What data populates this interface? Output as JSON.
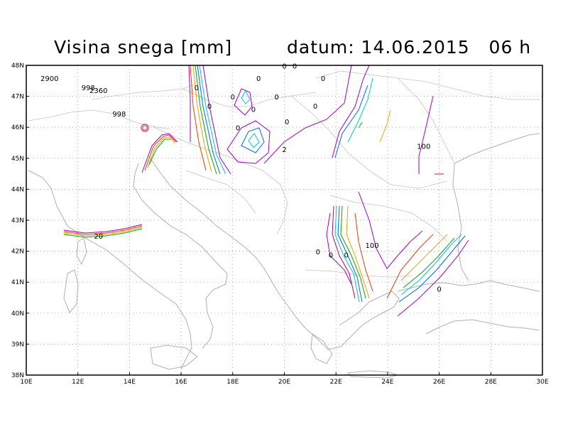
{
  "header": {
    "title": "Visina snega [mm]",
    "datum_label": "datum: 14.06.2015",
    "hour": "06 h"
  },
  "map": {
    "lon_range": [
      10,
      30
    ],
    "lat_range": [
      38,
      48
    ],
    "lon_ticks": [
      "10E",
      "12E",
      "14E",
      "16E",
      "18E",
      "20E",
      "22E",
      "24E",
      "26E",
      "28E",
      "30E"
    ],
    "lat_ticks": [
      "38N",
      "39N",
      "40N",
      "41N",
      "42N",
      "43N",
      "44N",
      "45N",
      "46N",
      "47N",
      "48N"
    ],
    "contour_labels": [
      {
        "text": "2900",
        "lon": 10.9,
        "lat": 47.5
      },
      {
        "text": "998",
        "lon": 12.4,
        "lat": 47.2
      },
      {
        "text": "2360",
        "lon": 12.8,
        "lat": 47.1
      },
      {
        "text": "998",
        "lon": 13.6,
        "lat": 46.35
      },
      {
        "text": "0",
        "lon": 20.0,
        "lat": 47.9
      },
      {
        "text": "0",
        "lon": 20.4,
        "lat": 47.9
      },
      {
        "text": "0",
        "lon": 16.6,
        "lat": 47.2
      },
      {
        "text": "0",
        "lon": 17.1,
        "lat": 46.6
      },
      {
        "text": "0",
        "lon": 18.0,
        "lat": 46.9
      },
      {
        "text": "0",
        "lon": 19.0,
        "lat": 47.5
      },
      {
        "text": "0",
        "lon": 19.7,
        "lat": 46.9
      },
      {
        "text": "0",
        "lon": 21.5,
        "lat": 47.5
      },
      {
        "text": "0",
        "lon": 21.2,
        "lat": 46.6
      },
      {
        "text": "0",
        "lon": 18.8,
        "lat": 46.5
      },
      {
        "text": "0",
        "lon": 18.2,
        "lat": 45.9
      },
      {
        "text": "0",
        "lon": 20.1,
        "lat": 46.1
      },
      {
        "text": "2",
        "lon": 20.0,
        "lat": 45.2
      },
      {
        "text": "100",
        "lon": 25.4,
        "lat": 45.3
      },
      {
        "text": "20",
        "lon": 12.8,
        "lat": 42.4
      },
      {
        "text": "0",
        "lon": 21.3,
        "lat": 41.9
      },
      {
        "text": "0",
        "lon": 21.8,
        "lat": 41.8
      },
      {
        "text": "0",
        "lon": 22.4,
        "lat": 41.8
      },
      {
        "text": "100",
        "lon": 23.4,
        "lat": 42.1
      },
      {
        "text": "0",
        "lon": 26.0,
        "lat": 40.7
      }
    ]
  }
}
